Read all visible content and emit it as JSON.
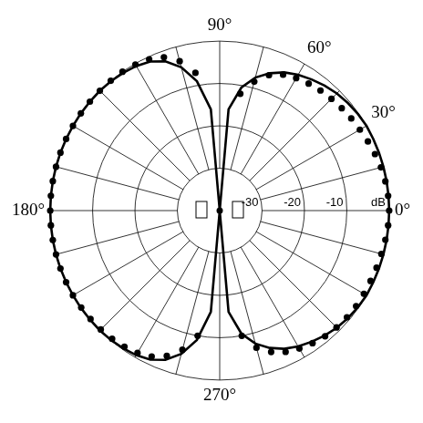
{
  "chart_data": {
    "type": "polar",
    "categories": [
      "90°",
      null,
      null,
      null,
      null,
      null,
      "60°",
      null,
      null,
      null,
      null,
      null,
      "30°",
      null,
      null,
      null,
      null,
      null,
      "0°",
      null,
      null,
      null,
      null,
      null,
      null,
      null,
      null,
      null,
      null,
      null,
      null,
      null,
      null,
      null,
      null,
      null,
      "270°",
      null,
      null,
      null,
      null,
      null,
      null,
      null,
      null,
      null,
      null,
      null,
      null,
      null,
      null,
      null,
      null,
      null,
      "180°",
      null,
      null,
      null,
      null,
      null,
      null,
      null,
      null,
      null,
      null,
      null,
      null,
      null,
      null,
      null,
      null,
      null
    ],
    "series": [
      {
        "color": "#000000",
        "line_style": "solid",
        "marker": "none",
        "values": [
          -40,
          -16,
          -10.5,
          -7.5,
          -5.5,
          -4,
          -3,
          -2.2,
          -1.5,
          -0.9,
          -0.5,
          -0.2,
          0,
          0,
          0,
          0,
          0,
          0,
          0,
          0,
          0,
          0,
          0,
          0,
          0,
          -0.2,
          -0.5,
          -0.9,
          -1.5,
          -2.2,
          -3,
          -4,
          -5.5,
          -7.5,
          -10.5,
          -16,
          -40,
          -16,
          -9,
          -5,
          -2.5,
          -1.2,
          -0.6,
          -0.3,
          -0.1,
          0,
          0,
          0,
          0,
          0,
          0,
          0,
          0,
          0,
          0,
          0,
          0,
          0,
          0,
          0,
          0,
          0,
          0,
          0,
          -0.1,
          -0.3,
          -0.6,
          -1.2,
          -2.5,
          -5,
          -9,
          -16
        ]
      },
      {
        "color": "#000000",
        "line_style": "none",
        "marker": "circle",
        "values": [
          null,
          null,
          -12,
          -8.5,
          -6,
          -4.6,
          -3.9,
          -3.4,
          -3,
          -2.7,
          -2.4,
          -2.1,
          -1.8,
          -1.4,
          -1,
          -0.6,
          -0.3,
          -0.1,
          0,
          -0.1,
          -0.3,
          -0.5,
          -0.6,
          -0.7,
          -0.7,
          -0.7,
          -0.8,
          -1,
          -1.3,
          -1.8,
          -2.4,
          -3.2,
          -4.5,
          -6.5,
          -10,
          null,
          null,
          null,
          -10,
          -6,
          -3.5,
          -2,
          -1.2,
          -0.8,
          -0.5,
          -0.3,
          -0.2,
          -0.1,
          0,
          0,
          0,
          0,
          0,
          0,
          0,
          0,
          0,
          0,
          0,
          0,
          0,
          0,
          0,
          0,
          0,
          0,
          -0.2,
          -0.6,
          -1.5,
          -3.5,
          -7,
          null
        ]
      }
    ],
    "ylim": [
      -40,
      0
    ],
    "yticks": [
      -30,
      -20,
      -10,
      {
        "value": 0,
        "label": "dB"
      }
    ],
    "grid": true
  }
}
